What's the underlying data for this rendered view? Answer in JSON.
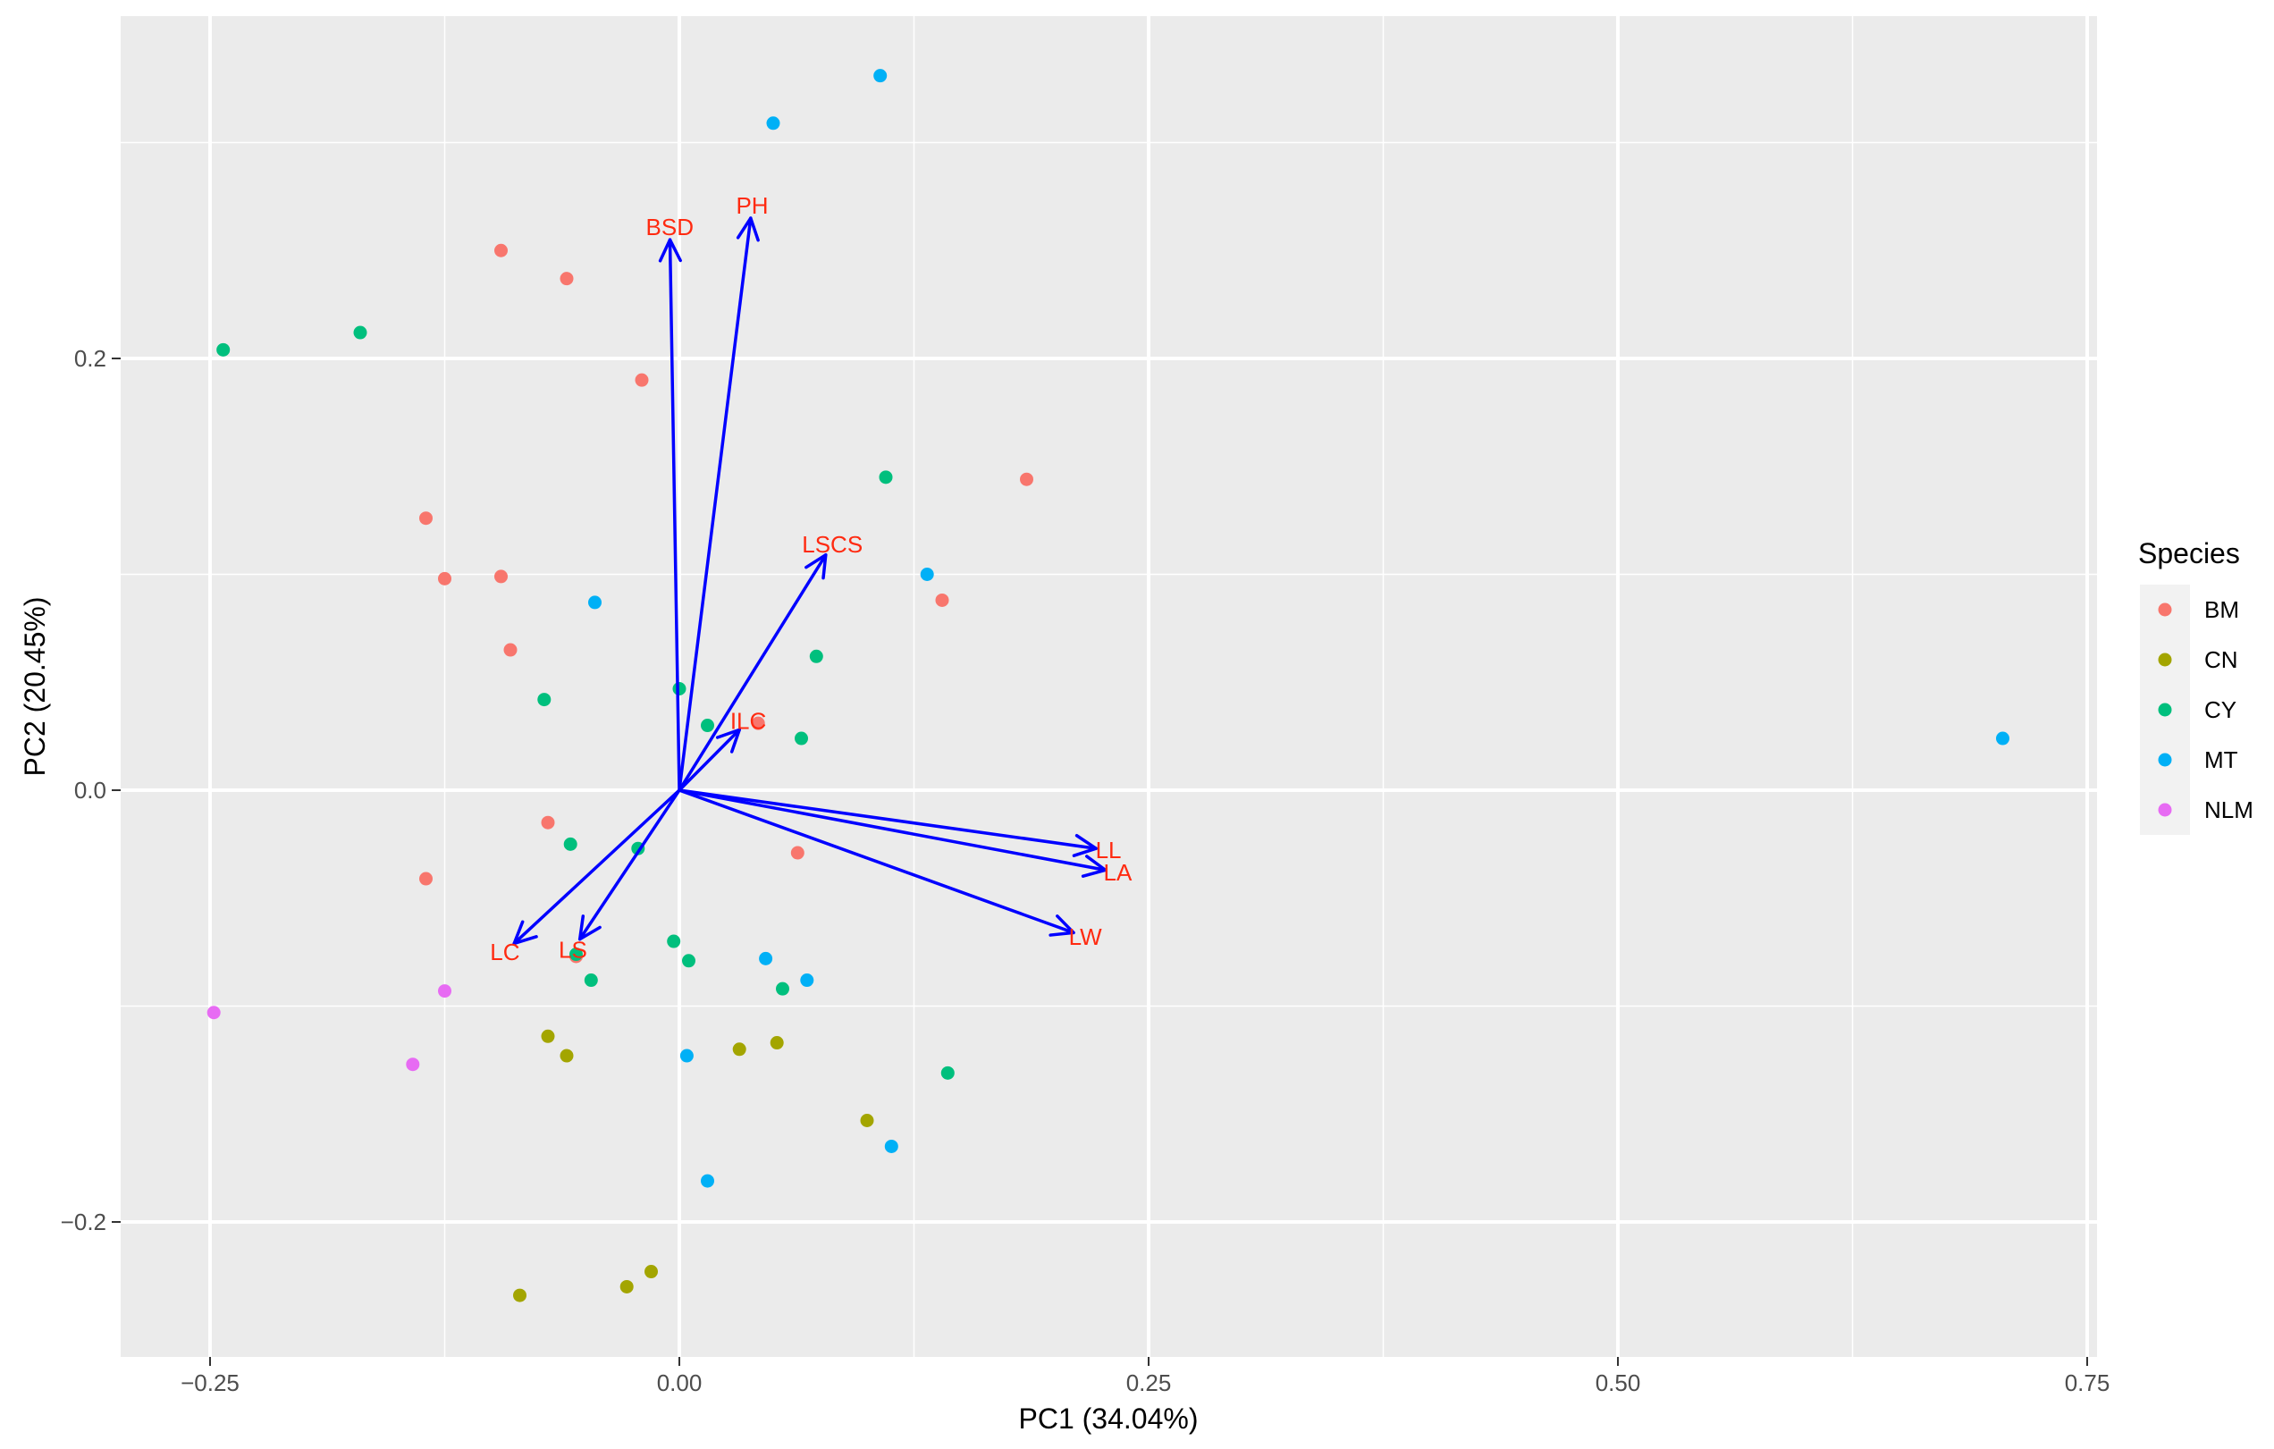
{
  "chart_data": {
    "type": "scatter",
    "title": "",
    "xlabel": "PC1 (34.04%)",
    "ylabel": "PC2 (20.45%)",
    "xlim": [
      -0.3,
      0.75
    ],
    "ylim": [
      -0.26,
      0.36
    ],
    "x_ticks": [
      {
        "value": -0.25,
        "label": "−0.25"
      },
      {
        "value": 0.0,
        "label": "0.00"
      },
      {
        "value": 0.25,
        "label": "0.25"
      },
      {
        "value": 0.5,
        "label": "0.50"
      },
      {
        "value": 0.75,
        "label": "0.75"
      }
    ],
    "y_ticks": [
      {
        "value": -0.2,
        "label": "−0.2"
      },
      {
        "value": 0.0,
        "label": "0.0"
      },
      {
        "value": 0.2,
        "label": "0.2"
      }
    ],
    "grid": true,
    "legend": {
      "title": "Species",
      "position": "right"
    },
    "series": [
      {
        "name": "BM",
        "color": "#f8766d",
        "points": [
          [
            -0.095,
            0.25
          ],
          [
            -0.06,
            0.237
          ],
          [
            -0.02,
            0.19
          ],
          [
            -0.135,
            0.126
          ],
          [
            -0.125,
            0.098
          ],
          [
            -0.095,
            0.099
          ],
          [
            -0.09,
            0.065
          ],
          [
            -0.07,
            -0.015
          ],
          [
            -0.135,
            -0.041
          ],
          [
            0.185,
            0.144
          ],
          [
            0.14,
            0.088
          ],
          [
            0.063,
            -0.029
          ],
          [
            -0.055,
            -0.077
          ],
          [
            0.042,
            0.031
          ]
        ]
      },
      {
        "name": "CN",
        "color": "#a3a500",
        "points": [
          [
            -0.07,
            -0.114
          ],
          [
            -0.06,
            -0.123
          ],
          [
            0.032,
            -0.12
          ],
          [
            0.052,
            -0.117
          ],
          [
            0.1,
            -0.153
          ],
          [
            -0.085,
            -0.234
          ],
          [
            -0.028,
            -0.23
          ],
          [
            -0.015,
            -0.223
          ]
        ]
      },
      {
        "name": "CY",
        "color": "#00bf7d",
        "points": [
          [
            -0.243,
            0.204
          ],
          [
            -0.17,
            0.212
          ],
          [
            0.11,
            0.145
          ],
          [
            0.073,
            0.062
          ],
          [
            0.0,
            0.047
          ],
          [
            -0.072,
            0.042
          ],
          [
            0.015,
            0.03
          ],
          [
            0.065,
            0.024
          ],
          [
            -0.058,
            -0.025
          ],
          [
            -0.022,
            -0.027
          ],
          [
            -0.003,
            -0.07
          ],
          [
            0.005,
            -0.079
          ],
          [
            -0.047,
            -0.088
          ],
          [
            0.055,
            -0.092
          ],
          [
            0.143,
            -0.131
          ],
          [
            -0.055,
            -0.076
          ]
        ]
      },
      {
        "name": "MT",
        "color": "#00b0f6",
        "points": [
          [
            0.107,
            0.331
          ],
          [
            0.05,
            0.309
          ],
          [
            0.132,
            0.1
          ],
          [
            -0.045,
            0.087
          ],
          [
            0.705,
            0.024
          ],
          [
            0.046,
            -0.078
          ],
          [
            0.068,
            -0.088
          ],
          [
            0.004,
            -0.123
          ],
          [
            0.113,
            -0.165
          ],
          [
            0.015,
            -0.181
          ]
        ]
      },
      {
        "name": "NLM",
        "color": "#e76bf3",
        "points": [
          [
            -0.248,
            -0.103
          ],
          [
            -0.125,
            -0.093
          ],
          [
            -0.142,
            -0.127
          ]
        ]
      }
    ],
    "loadings": {
      "color": "#0000ff",
      "label_color": "#ff2a10",
      "vectors": [
        {
          "name": "BSD",
          "x": -0.005,
          "y": 0.255
        },
        {
          "name": "PH",
          "x": 0.038,
          "y": 0.265
        },
        {
          "name": "LSCS",
          "x": 0.078,
          "y": 0.109
        },
        {
          "name": "ILC",
          "x": 0.032,
          "y": 0.028
        },
        {
          "name": "LL",
          "x": 0.222,
          "y": -0.027
        },
        {
          "name": "LA",
          "x": 0.227,
          "y": -0.037
        },
        {
          "name": "LW",
          "x": 0.21,
          "y": -0.066
        },
        {
          "name": "LC",
          "x": -0.088,
          "y": -0.071
        },
        {
          "name": "LS",
          "x": -0.053,
          "y": -0.069
        }
      ]
    }
  }
}
